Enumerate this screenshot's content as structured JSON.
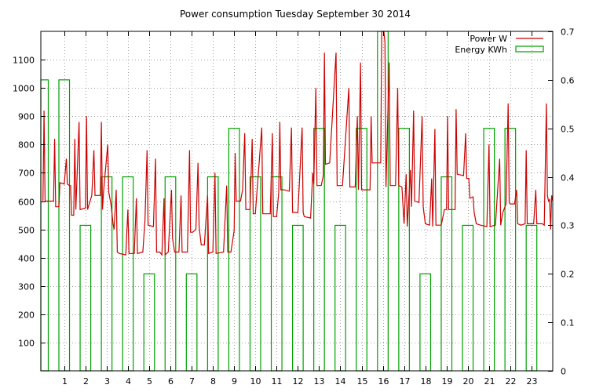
{
  "chart_data": {
    "type": "line",
    "title": "Power consumption Tuesday September 30 2014",
    "x_ticks": [
      1,
      2,
      3,
      4,
      5,
      6,
      7,
      8,
      9,
      10,
      11,
      12,
      13,
      14,
      15,
      16,
      17,
      18,
      19,
      20,
      21,
      22,
      23
    ],
    "xlim": [
      -0.1,
      24.0
    ],
    "y_ticks": [
      100,
      200,
      300,
      400,
      500,
      600,
      700,
      800,
      900,
      1000,
      1100
    ],
    "ylim": [
      0,
      1200
    ],
    "y2_ticks": [
      0,
      0.1,
      0.2,
      0.3,
      0.4,
      0.5,
      0.6,
      0.7
    ],
    "y2lim": [
      0,
      0.7
    ],
    "grid": true,
    "legend_position": "top-right",
    "colors": {
      "power": "#cc0000",
      "energy": "#00a000"
    },
    "series": [
      {
        "name": "Power W",
        "axis": "left",
        "style": "line",
        "points": [
          [
            0.0,
            600
          ],
          [
            0.05,
            920
          ],
          [
            0.1,
            600
          ],
          [
            0.5,
            600
          ],
          [
            0.55,
            820
          ],
          [
            0.6,
            580
          ],
          [
            0.75,
            580
          ],
          [
            0.8,
            665
          ],
          [
            1.0,
            660
          ],
          [
            1.1,
            750
          ],
          [
            1.15,
            660
          ],
          [
            1.25,
            655
          ],
          [
            1.3,
            655
          ],
          [
            1.35,
            550
          ],
          [
            1.45,
            550
          ],
          [
            1.5,
            820
          ],
          [
            1.55,
            570
          ],
          [
            1.7,
            880
          ],
          [
            1.75,
            570
          ],
          [
            2.0,
            575
          ],
          [
            2.05,
            900
          ],
          [
            2.1,
            570
          ],
          [
            2.3,
            620
          ],
          [
            2.4,
            780
          ],
          [
            2.45,
            620
          ],
          [
            2.7,
            620
          ],
          [
            2.75,
            880
          ],
          [
            2.8,
            570
          ],
          [
            2.85,
            630
          ],
          [
            3.05,
            800
          ],
          [
            3.1,
            630
          ],
          [
            3.2,
            590
          ],
          [
            3.3,
            520
          ],
          [
            3.35,
            500
          ],
          [
            3.45,
            640
          ],
          [
            3.5,
            420
          ],
          [
            3.6,
            415
          ],
          [
            3.9,
            410
          ],
          [
            4.0,
            570
          ],
          [
            4.05,
            415
          ],
          [
            4.3,
            415
          ],
          [
            4.4,
            610
          ],
          [
            4.45,
            415
          ],
          [
            4.7,
            420
          ],
          [
            4.8,
            530
          ],
          [
            4.9,
            780
          ],
          [
            4.95,
            515
          ],
          [
            5.2,
            510
          ],
          [
            5.3,
            750
          ],
          [
            5.35,
            420
          ],
          [
            5.5,
            420
          ],
          [
            5.6,
            410
          ],
          [
            5.7,
            610
          ],
          [
            5.75,
            410
          ],
          [
            5.9,
            420
          ],
          [
            6.05,
            640
          ],
          [
            6.1,
            470
          ],
          [
            6.2,
            420
          ],
          [
            6.4,
            420
          ],
          [
            6.5,
            620
          ],
          [
            6.55,
            420
          ],
          [
            6.8,
            420
          ],
          [
            6.9,
            780
          ],
          [
            6.95,
            490
          ],
          [
            7.05,
            490
          ],
          [
            7.2,
            500
          ],
          [
            7.3,
            735
          ],
          [
            7.35,
            510
          ],
          [
            7.45,
            445
          ],
          [
            7.6,
            445
          ],
          [
            7.75,
            620
          ],
          [
            7.8,
            415
          ],
          [
            8.0,
            420
          ],
          [
            8.1,
            700
          ],
          [
            8.15,
            415
          ],
          [
            8.5,
            420
          ],
          [
            8.65,
            655
          ],
          [
            8.7,
            420
          ],
          [
            8.85,
            420
          ],
          [
            9.0,
            495
          ],
          [
            9.05,
            770
          ],
          [
            9.1,
            600
          ],
          [
            9.3,
            600
          ],
          [
            9.4,
            640
          ],
          [
            9.5,
            840
          ],
          [
            9.55,
            570
          ],
          [
            9.75,
            570
          ],
          [
            9.85,
            820
          ],
          [
            9.9,
            555
          ],
          [
            10.0,
            555
          ],
          [
            10.3,
            860
          ],
          [
            10.35,
            555
          ],
          [
            10.7,
            555
          ],
          [
            10.8,
            840
          ],
          [
            10.85,
            545
          ],
          [
            11.0,
            545
          ],
          [
            11.1,
            630
          ],
          [
            11.15,
            880
          ],
          [
            11.2,
            640
          ],
          [
            11.35,
            640
          ],
          [
            11.6,
            635
          ],
          [
            11.7,
            860
          ],
          [
            11.75,
            560
          ],
          [
            12.0,
            560
          ],
          [
            12.2,
            860
          ],
          [
            12.25,
            560
          ],
          [
            12.3,
            545
          ],
          [
            12.6,
            540
          ],
          [
            12.7,
            700
          ],
          [
            12.75,
            660
          ],
          [
            12.85,
            1000
          ],
          [
            12.9,
            655
          ],
          [
            13.1,
            655
          ],
          [
            13.2,
            690
          ],
          [
            13.25,
            1125
          ],
          [
            13.3,
            730
          ],
          [
            13.5,
            735
          ],
          [
            13.8,
            1125
          ],
          [
            13.85,
            655
          ],
          [
            14.1,
            655
          ],
          [
            14.4,
            1000
          ],
          [
            14.45,
            650
          ],
          [
            14.7,
            650
          ],
          [
            14.8,
            900
          ],
          [
            14.85,
            640
          ],
          [
            14.95,
            1090
          ],
          [
            15.0,
            640
          ],
          [
            15.4,
            640
          ],
          [
            15.45,
            900
          ],
          [
            15.5,
            735
          ],
          [
            15.9,
            735
          ],
          [
            15.95,
            1200
          ],
          [
            16.05,
            1200
          ],
          [
            16.1,
            1160
          ],
          [
            16.15,
            650
          ],
          [
            16.3,
            1090
          ],
          [
            16.35,
            655
          ],
          [
            16.6,
            655
          ],
          [
            16.7,
            1000
          ],
          [
            16.75,
            655
          ],
          [
            16.9,
            650
          ],
          [
            17.0,
            520
          ],
          [
            17.1,
            695
          ],
          [
            17.15,
            510
          ],
          [
            17.3,
            710
          ],
          [
            17.35,
            580
          ],
          [
            17.45,
            920
          ],
          [
            17.5,
            600
          ],
          [
            17.7,
            595
          ],
          [
            17.85,
            900
          ],
          [
            17.9,
            580
          ],
          [
            18.0,
            520
          ],
          [
            18.2,
            515
          ],
          [
            18.3,
            680
          ],
          [
            18.35,
            510
          ],
          [
            18.45,
            855
          ],
          [
            18.5,
            515
          ],
          [
            18.75,
            515
          ],
          [
            18.9,
            570
          ],
          [
            19.0,
            570
          ],
          [
            19.05,
            900
          ],
          [
            19.1,
            570
          ],
          [
            19.4,
            570
          ],
          [
            19.45,
            925
          ],
          [
            19.5,
            695
          ],
          [
            19.8,
            690
          ],
          [
            19.9,
            840
          ],
          [
            19.95,
            680
          ],
          [
            20.05,
            680
          ],
          [
            20.1,
            610
          ],
          [
            20.25,
            615
          ],
          [
            20.3,
            560
          ],
          [
            20.4,
            520
          ],
          [
            20.6,
            515
          ],
          [
            20.9,
            510
          ],
          [
            21.0,
            800
          ],
          [
            21.05,
            510
          ],
          [
            21.3,
            515
          ],
          [
            21.5,
            750
          ],
          [
            21.55,
            515
          ],
          [
            21.65,
            560
          ],
          [
            21.8,
            590
          ],
          [
            21.9,
            945
          ],
          [
            21.95,
            595
          ],
          [
            22.0,
            590
          ],
          [
            22.2,
            590
          ],
          [
            22.3,
            640
          ],
          [
            22.35,
            520
          ],
          [
            22.5,
            515
          ],
          [
            22.7,
            520
          ],
          [
            22.75,
            780
          ],
          [
            22.8,
            520
          ],
          [
            23.1,
            520
          ],
          [
            23.2,
            640
          ],
          [
            23.25,
            520
          ],
          [
            23.5,
            520
          ],
          [
            23.6,
            515
          ],
          [
            23.7,
            945
          ],
          [
            23.75,
            620
          ],
          [
            23.8,
            600
          ],
          [
            23.85,
            605
          ],
          [
            23.9,
            500
          ],
          [
            23.95,
            620
          ],
          [
            24.0,
            600
          ]
        ]
      },
      {
        "name": "Energy KWh",
        "axis": "right",
        "style": "boxes",
        "box_width": 0.5,
        "boxes": [
          [
            0,
            0.6
          ],
          [
            1,
            0.6
          ],
          [
            2,
            0.3
          ],
          [
            3,
            0.4
          ],
          [
            4,
            0.4
          ],
          [
            5,
            0.2
          ],
          [
            6,
            0.4
          ],
          [
            7,
            0.2
          ],
          [
            8,
            0.4
          ],
          [
            9,
            0.5
          ],
          [
            10,
            0.4
          ],
          [
            11,
            0.4
          ],
          [
            12,
            0.3
          ],
          [
            13,
            0.5
          ],
          [
            14,
            0.3
          ],
          [
            15,
            0.5
          ],
          [
            16,
            0.7
          ],
          [
            17,
            0.5
          ],
          [
            18,
            0.2
          ],
          [
            19,
            0.4
          ],
          [
            20,
            0.3
          ],
          [
            21,
            0.5
          ],
          [
            22,
            0.5
          ],
          [
            23,
            0.3
          ]
        ]
      }
    ]
  }
}
